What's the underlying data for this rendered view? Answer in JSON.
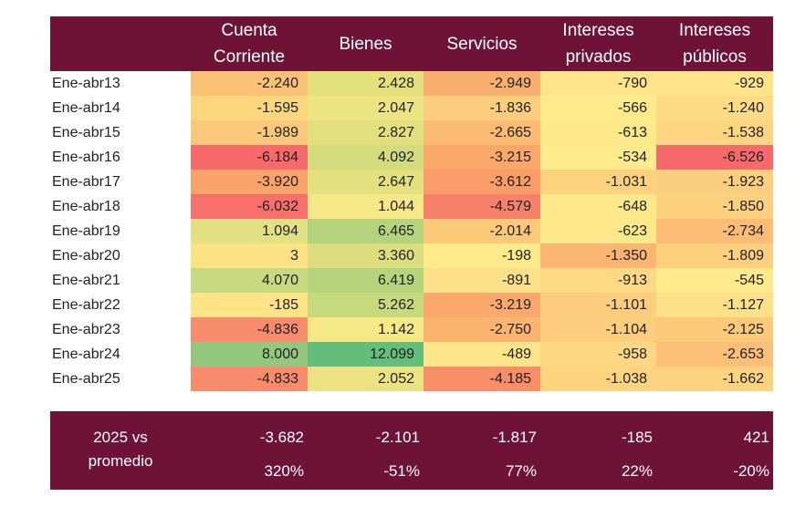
{
  "headers": [
    "",
    "Cuenta\nCorriente",
    "Bienes",
    "Servicios",
    "Intereses\nprivados",
    "Intereses\npúblicos"
  ],
  "rows": [
    {
      "label": "Ene-abr13",
      "values": [
        "-2.240",
        "2.428",
        "-2.949",
        "-790",
        "-929"
      ],
      "colors": [
        "#f9c175",
        "#e5e07e",
        "#f9b06e",
        "#fde38a",
        "#fde38a"
      ]
    },
    {
      "label": "Ene-abr14",
      "values": [
        "-1.595",
        "2.047",
        "-1.836",
        "-566",
        "-1.240"
      ],
      "colors": [
        "#fbd67f",
        "#ece483",
        "#fccd7e",
        "#fee98c",
        "#fddb86"
      ]
    },
    {
      "label": "Ene-abr15",
      "values": [
        "-1.989",
        "2.827",
        "-2.665",
        "-613",
        "-1.538"
      ],
      "colors": [
        "#fac87a",
        "#e3df7e",
        "#fbbb72",
        "#fee88c",
        "#fcd583"
      ]
    },
    {
      "label": "Ene-abr16",
      "values": [
        "-6.184",
        "4.092",
        "-3.215",
        "-534",
        "-6.526"
      ],
      "colors": [
        "#f8696b",
        "#d3db7c",
        "#f9a86a",
        "#feeb8e",
        "#f8696b"
      ]
    },
    {
      "label": "Ene-abr17",
      "values": [
        "-3.920",
        "2.647",
        "-3.612",
        "-1.031",
        "-1.923"
      ],
      "colors": [
        "#f9a26a",
        "#e4e07f",
        "#f99c68",
        "#fcd27f",
        "#fcce7f"
      ]
    },
    {
      "label": "Ene-abr18",
      "values": [
        "-6.032",
        "1.044",
        "-4.579",
        "-648",
        "-1.850"
      ],
      "colors": [
        "#f8706c",
        "#f6e886",
        "#f8816a",
        "#fee88c",
        "#fcd07f"
      ]
    },
    {
      "label": "Ene-abr19",
      "values": [
        "1.094",
        "6.465",
        "-2.014",
        "-623",
        "-2.734"
      ],
      "colors": [
        "#e1e083",
        "#b5d37c",
        "#fbc978",
        "#fee88c",
        "#fbbd76"
      ]
    },
    {
      "label": "Ene-abr20",
      "values": [
        "3",
        "3.360",
        "-198",
        "-1.350",
        "-1.809"
      ],
      "colors": [
        "#fbe385",
        "#dcdd7e",
        "#fee98b",
        "#f9b571",
        "#fcd07f"
      ]
    },
    {
      "label": "Ene-abr21",
      "values": [
        "4.070",
        "6.419",
        "-891",
        "-913",
        "-545"
      ],
      "colors": [
        "#c7da80",
        "#b6d47c",
        "#fde08a",
        "#fdd985",
        "#fee98c"
      ]
    },
    {
      "label": "Ene-abr22",
      "values": [
        "-185",
        "5.262",
        "-3.219",
        "-1.101",
        "-1.127"
      ],
      "colors": [
        "#fee486",
        "#c7d97d",
        "#faa86b",
        "#fccd7e",
        "#fde08a"
      ]
    },
    {
      "label": "Ene-abr23",
      "values": [
        "-4.836",
        "1.142",
        "-2.750",
        "-1.104",
        "-2.125"
      ],
      "colors": [
        "#f88b6b",
        "#f5e886",
        "#fab470",
        "#fccd7e",
        "#fcc97b"
      ]
    },
    {
      "label": "Ene-abr24",
      "values": [
        "8.000",
        "12.099",
        "-489",
        "-958",
        "-2.653"
      ],
      "colors": [
        "#93c77d",
        "#63be7b",
        "#fde58b",
        "#fdd784",
        "#fbbf77"
      ]
    },
    {
      "label": "Ene-abr25",
      "values": [
        "-4.833",
        "2.052",
        "-4.185",
        "-1.038",
        "-1.662"
      ],
      "colors": [
        "#f88b6b",
        "#ebe383",
        "#f88f69",
        "#fdd380",
        "#fcd381"
      ]
    }
  ],
  "footer": {
    "label_line1": "2025 vs",
    "label_line2": "promedio",
    "diffs": [
      "-3.682",
      "-2.101",
      "-1.817",
      "-185",
      "421"
    ],
    "pcts": [
      "320%",
      "-51%",
      "77%",
      "22%",
      "-20%"
    ]
  },
  "colors": {
    "header_bg": "#6e1236",
    "header_text": "#ffffff"
  }
}
